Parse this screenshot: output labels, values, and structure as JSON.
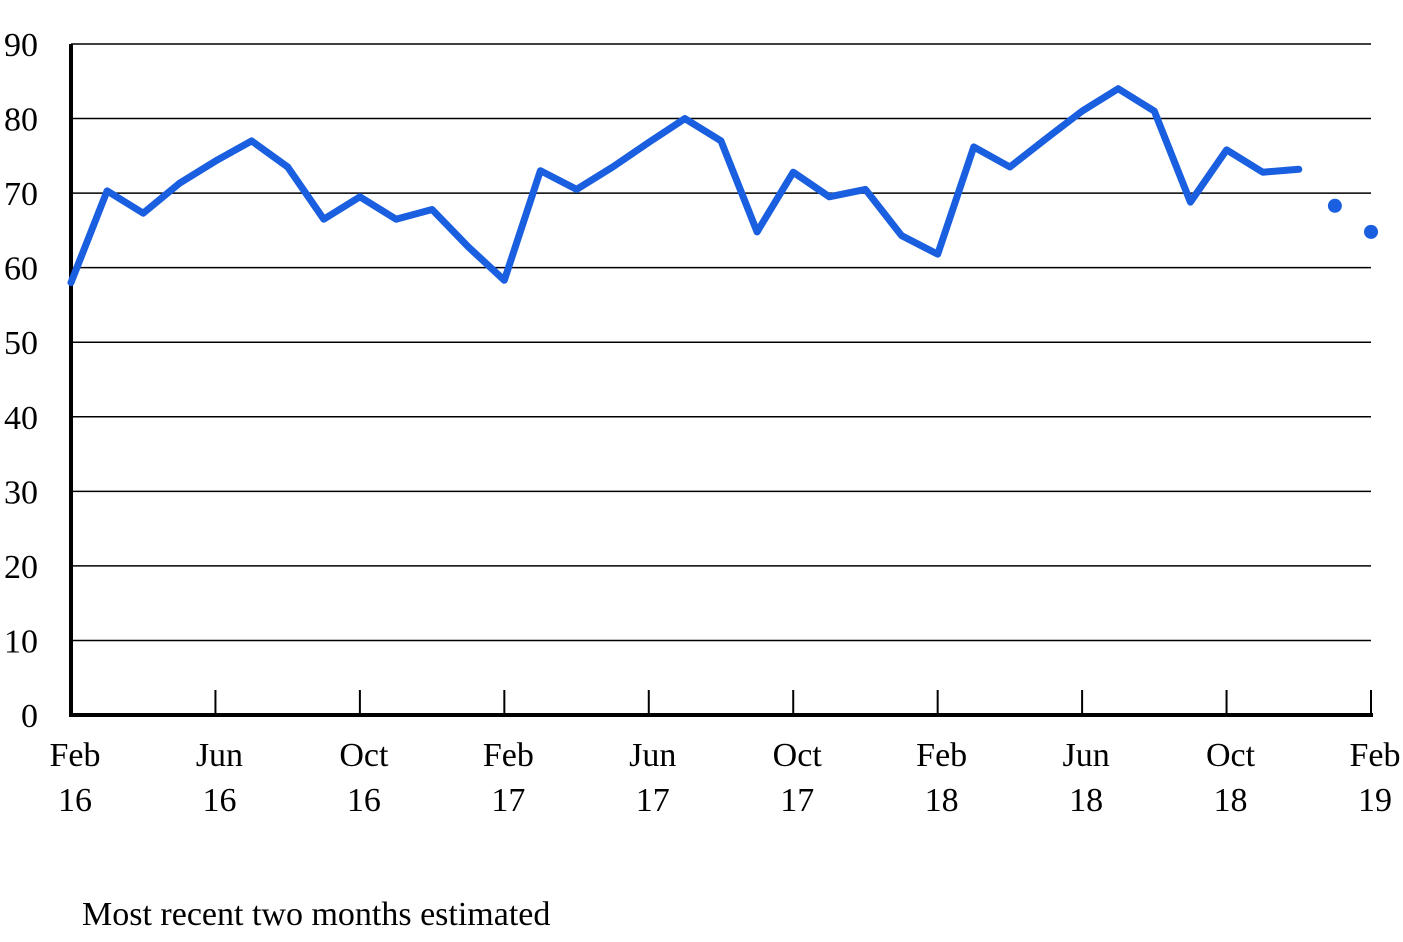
{
  "chart_data": {
    "type": "line",
    "title": "",
    "xlabel": "",
    "ylabel": "",
    "ylim": [
      0,
      90
    ],
    "yticks": [
      0,
      10,
      20,
      30,
      40,
      50,
      60,
      70,
      80,
      90
    ],
    "grid": true,
    "x_tick_labels": [
      {
        "month": "Feb",
        "year": "16",
        "index": 0
      },
      {
        "month": "Jun",
        "year": "16",
        "index": 4
      },
      {
        "month": "Oct",
        "year": "16",
        "index": 8
      },
      {
        "month": "Feb",
        "year": "17",
        "index": 12
      },
      {
        "month": "Jun",
        "year": "17",
        "index": 16
      },
      {
        "month": "Oct",
        "year": "17",
        "index": 20
      },
      {
        "month": "Feb",
        "year": "18",
        "index": 24
      },
      {
        "month": "Jun",
        "year": "18",
        "index": 28
      },
      {
        "month": "Oct",
        "year": "18",
        "index": 32
      },
      {
        "month": "Feb",
        "year": "19",
        "index": 36
      }
    ],
    "x": [
      "2016-02",
      "2016-03",
      "2016-04",
      "2016-05",
      "2016-06",
      "2016-07",
      "2016-08",
      "2016-09",
      "2016-10",
      "2016-11",
      "2016-12",
      "2017-01",
      "2017-02",
      "2017-03",
      "2017-04",
      "2017-05",
      "2017-06",
      "2017-07",
      "2017-08",
      "2017-09",
      "2017-10",
      "2017-11",
      "2017-12",
      "2018-01",
      "2018-02",
      "2018-03",
      "2018-04",
      "2018-05",
      "2018-06",
      "2018-07",
      "2018-08",
      "2018-09",
      "2018-10",
      "2018-11",
      "2018-12",
      "2019-01",
      "2019-02"
    ],
    "series": [
      {
        "color": "#1a5fe0",
        "values": [
          58,
          70.3,
          67.3,
          71.3,
          74.3,
          77,
          73.5,
          66.5,
          69.5,
          66.5,
          67.8,
          62.8,
          58.3,
          73,
          70.5,
          73.5,
          76.8,
          80,
          77,
          64.8,
          72.8,
          69.5,
          70.5,
          64.3,
          61.8,
          76.2,
          73.5,
          77.3,
          81,
          84,
          81,
          68.8,
          75.8,
          72.8,
          73.2,
          null,
          null
        ],
        "estimated_values": [
          null,
          null,
          null,
          null,
          null,
          null,
          null,
          null,
          null,
          null,
          null,
          null,
          null,
          null,
          null,
          null,
          null,
          null,
          null,
          null,
          null,
          null,
          null,
          null,
          null,
          null,
          null,
          null,
          null,
          null,
          null,
          null,
          null,
          null,
          null,
          68.3,
          64.8
        ]
      }
    ]
  },
  "footnote": "Most recent two months estimated"
}
